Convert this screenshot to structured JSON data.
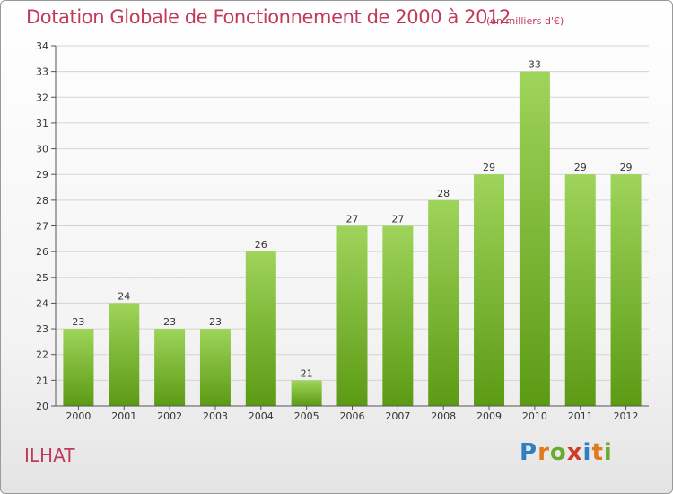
{
  "header": {
    "title": "Dotation Globale de Fonctionnement de 2000 à 2012",
    "unit": "(en milliers d'€)"
  },
  "footer": {
    "commune": "ILHAT",
    "logo_letters": [
      "P",
      "r",
      "o",
      "x",
      "i",
      "t",
      "i"
    ],
    "logo_colors": [
      "#2f7fc1",
      "#e07a1f",
      "#6aaa2e",
      "#d23a2a",
      "#2f7fc1",
      "#e07a1f",
      "#6aaa2e"
    ]
  },
  "colors": {
    "bar_top": "#9ed45a",
    "bar_bottom": "#5c9a14",
    "grid": "#d4d4d4",
    "title": "#c23a5a"
  },
  "chart_data": {
    "type": "bar",
    "title": "Dotation Globale de Fonctionnement de 2000 à 2012",
    "xlabel": "",
    "ylabel": "",
    "ylim": [
      20,
      34
    ],
    "yticks": [
      20,
      21,
      22,
      23,
      24,
      25,
      26,
      27,
      28,
      29,
      30,
      31,
      32,
      33,
      34
    ],
    "grid": true,
    "categories": [
      "2000",
      "2001",
      "2002",
      "2003",
      "2004",
      "2005",
      "2006",
      "2007",
      "2008",
      "2009",
      "2010",
      "2011",
      "2012"
    ],
    "values": [
      23,
      24,
      23,
      23,
      26,
      21,
      27,
      27,
      28,
      29,
      33,
      29,
      29
    ]
  }
}
